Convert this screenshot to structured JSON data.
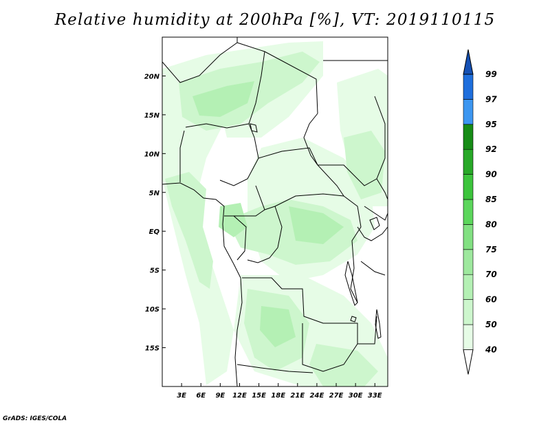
{
  "title": "Relative humidity at 200hPa [%], VT: 2019110115",
  "footer": "GrADS: IGES/COLA",
  "colors": {
    "band_40_50": "#e6fce6",
    "band_50_60": "#cdf6cd",
    "band_60_70": "#b4f0b4",
    "band_70_75": "#9ee89e",
    "band_75_80": "#82e082",
    "band_80_85": "#5cd65c",
    "band_85_90": "#3cc43c",
    "band_90_92": "#28a828",
    "band_92_95": "#168c16",
    "band_95_97": "#3c96f0",
    "band_97_99": "#1e6edc",
    "band_99_up": "#1450b4"
  },
  "map": {
    "lat_labels": [
      "20N",
      "15N",
      "10N",
      "5N",
      "EQ",
      "5S",
      "10S",
      "15S"
    ],
    "lat_values": [
      20,
      15,
      10,
      5,
      0,
      -5,
      -10,
      -15
    ],
    "lon_labels": [
      "3E",
      "6E",
      "9E",
      "12E",
      "15E",
      "18E",
      "21E",
      "24E",
      "27E",
      "30E",
      "33E"
    ],
    "lon_values": [
      3,
      6,
      9,
      12,
      15,
      18,
      21,
      24,
      27,
      30,
      33
    ],
    "lon_range": [
      0,
      35
    ],
    "lat_range": [
      -20,
      25
    ]
  },
  "colorbar": {
    "labels": [
      "40",
      "50",
      "60",
      "70",
      "75",
      "80",
      "85",
      "90",
      "92",
      "95",
      "97",
      "99"
    ],
    "levels": [
      40,
      50,
      60,
      70,
      75,
      80,
      85,
      90,
      92,
      95,
      97,
      99
    ]
  }
}
